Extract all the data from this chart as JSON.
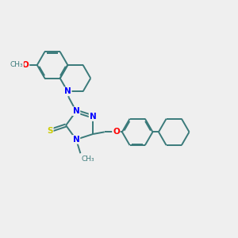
{
  "bg_color": "#efefef",
  "bond_color": "#3a7a7a",
  "bond_width": 1.4,
  "atom_colors": {
    "N": "#0000ff",
    "O": "#ff0000",
    "S": "#cccc00",
    "C": "#3a7a7a"
  },
  "font_size": 7.5,
  "fig_size": [
    3.0,
    3.0
  ],
  "dpi": 100,
  "xlim": [
    -1.5,
    9.5
  ],
  "ylim": [
    -3.5,
    3.5
  ]
}
